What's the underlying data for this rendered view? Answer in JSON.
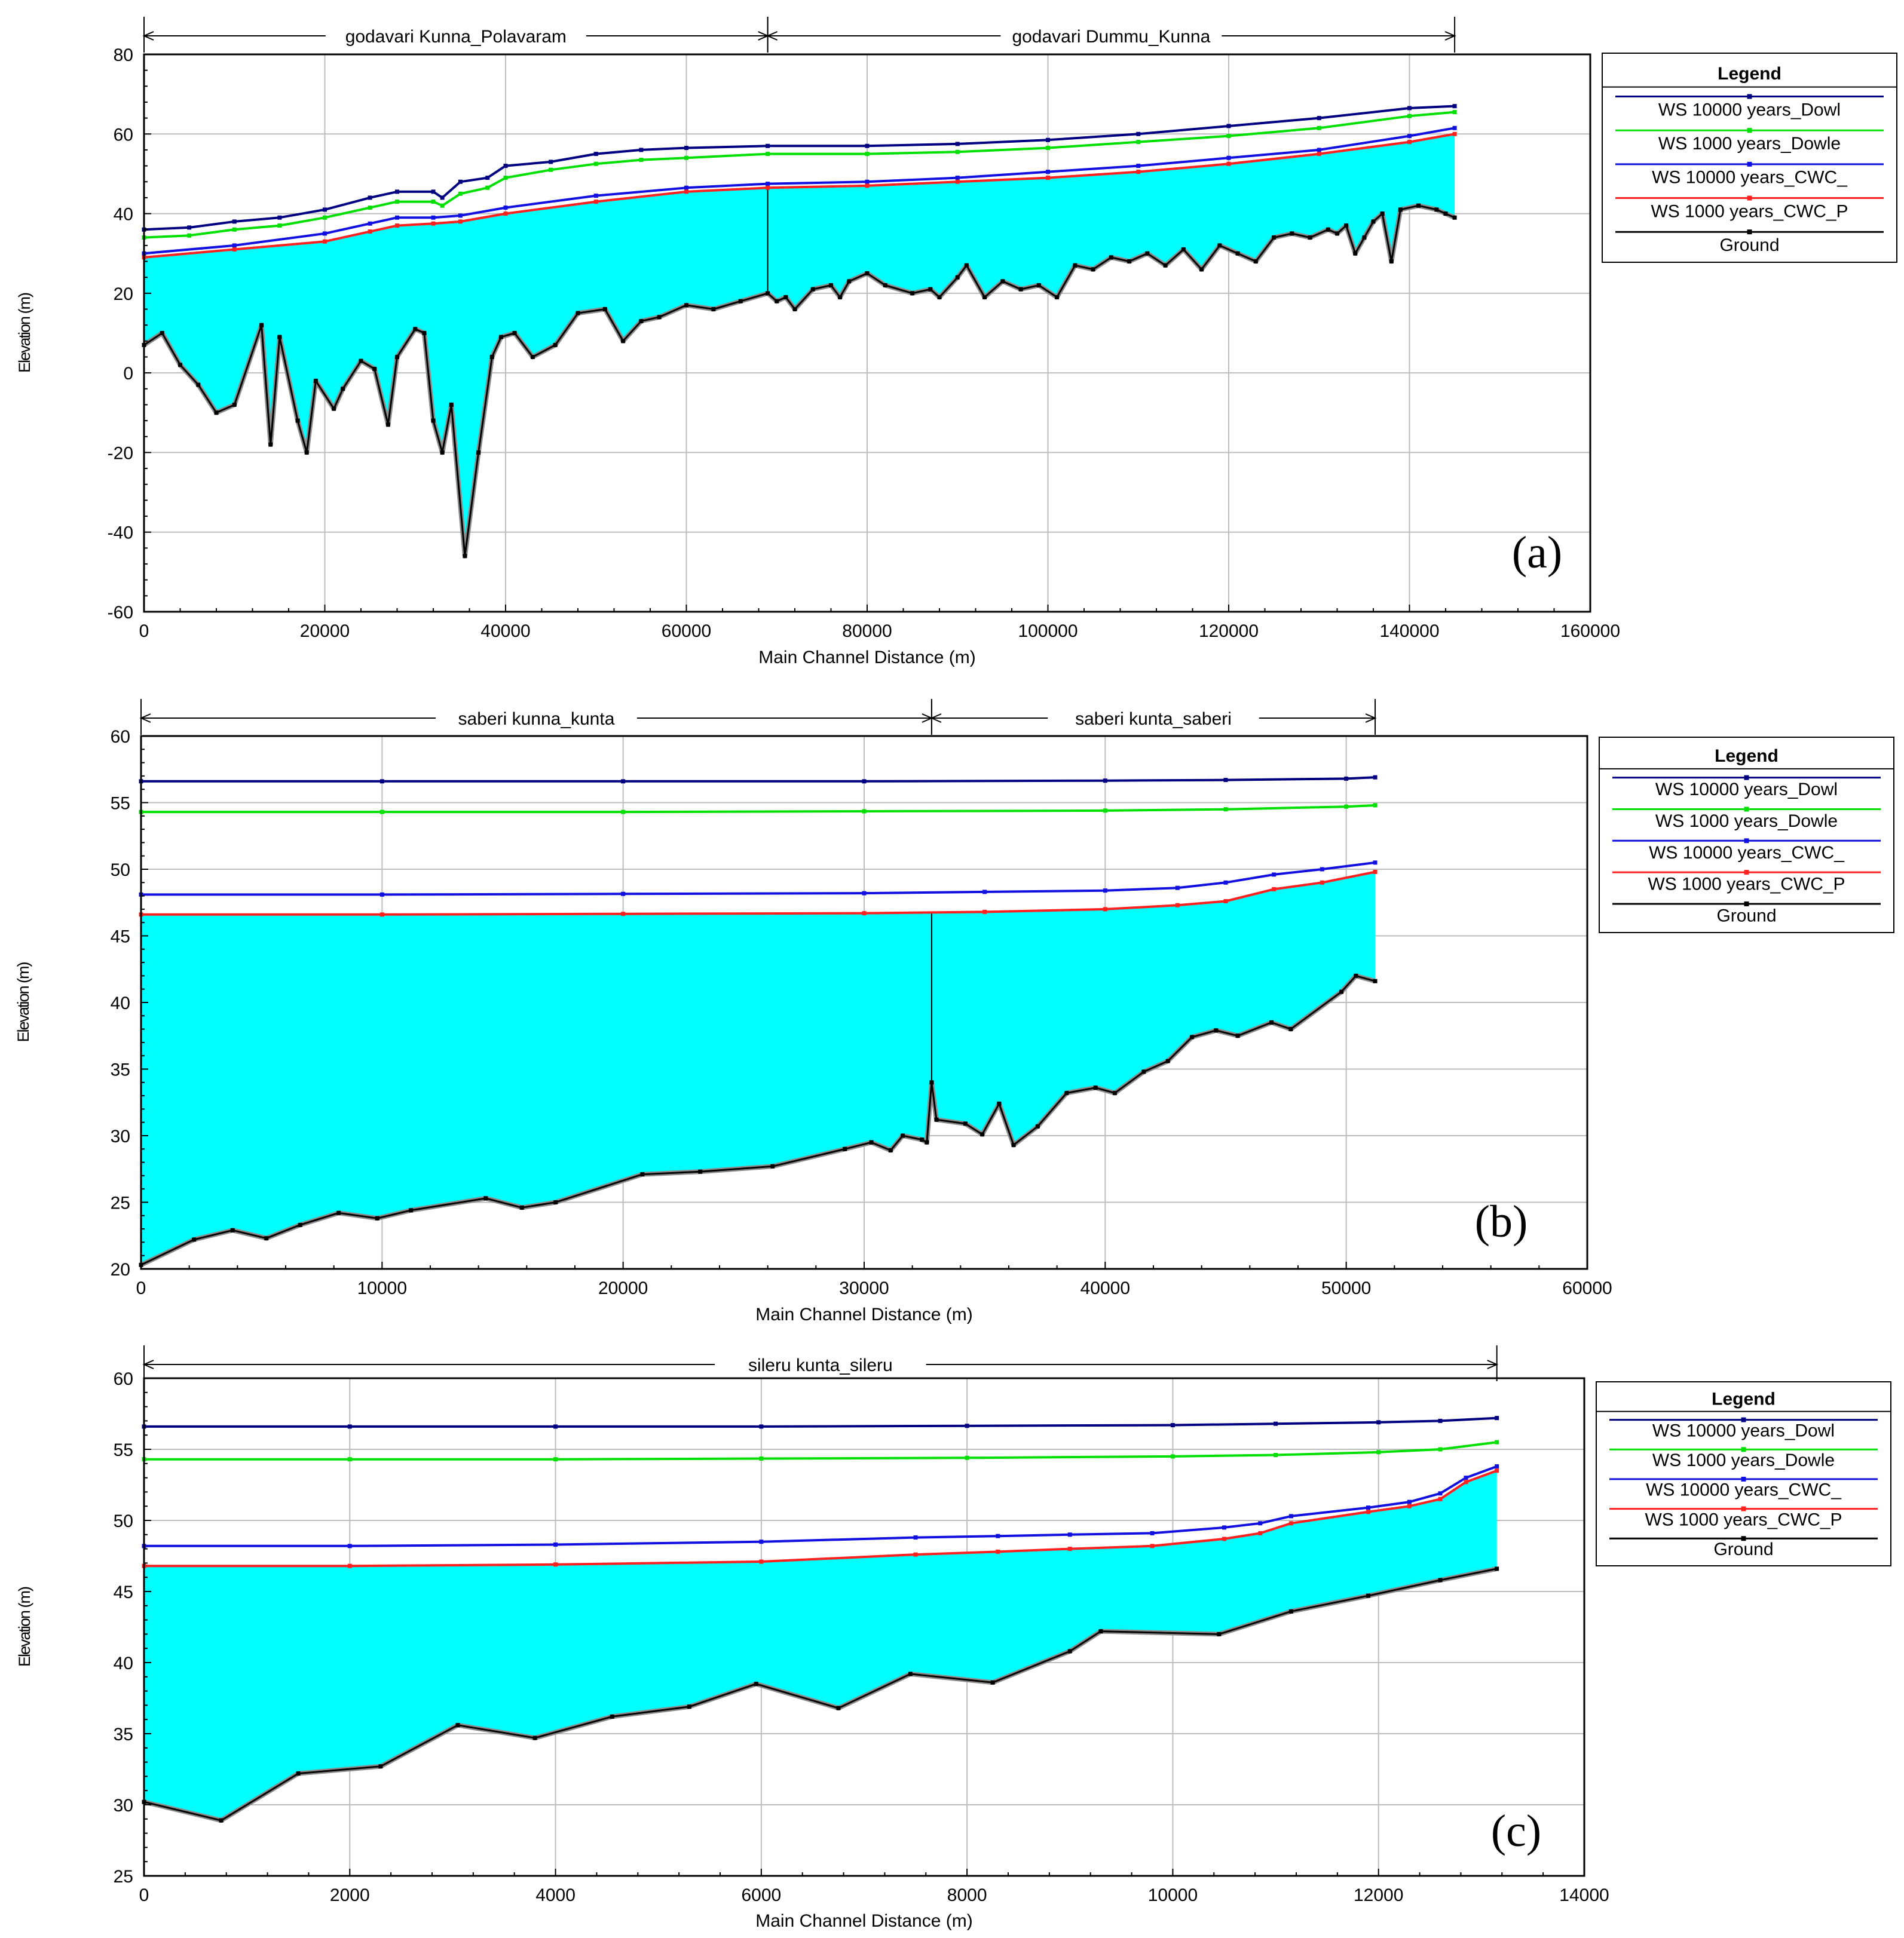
{
  "colors": {
    "ws10000_dowl": "#000080",
    "ws1000_dowle": "#00e000",
    "ws10000_cwc": "#1010e0",
    "ws1000_cwc_p": "#ff2020",
    "ground": "#000000",
    "water_fill": "#00ffff",
    "grid": "#bdbdbd"
  },
  "chart_data": [
    {
      "type": "line",
      "panel_label": "(a)",
      "xlabel": "Main Channel Distance  (m)",
      "ylabel": "Elevation (m)",
      "xlim": [
        0,
        160000
      ],
      "ylim": [
        -60,
        80
      ],
      "xticks": [
        0,
        20000,
        40000,
        60000,
        80000,
        100000,
        120000,
        140000,
        160000
      ],
      "yticks": [
        -60,
        -40,
        -20,
        0,
        20,
        40,
        60,
        80
      ],
      "grid": true,
      "reaches": [
        {
          "name": "godavari Kunna_Polavaram",
          "x0": 0,
          "x1": 69000
        },
        {
          "name": "godavari Dummu_Kunna",
          "x0": 69000,
          "x1": 145000
        }
      ],
      "reach_divider": 69000,
      "legend": {
        "title": "Legend",
        "entries": [
          "WS  10000 years_Dowl",
          "WS  1000 years_Dowle",
          "WS  10000 years_CWC_",
          "WS  1000 years_CWC_P",
          "Ground"
        ]
      },
      "series": [
        {
          "name": "WS  10000 years_Dowl",
          "color_key": "ws10000_dowl",
          "x": [
            0,
            5000,
            10000,
            15000,
            20000,
            25000,
            28000,
            32000,
            33000,
            35000,
            38000,
            40000,
            45000,
            50000,
            55000,
            60000,
            69000,
            80000,
            90000,
            100000,
            110000,
            120000,
            130000,
            140000,
            145000
          ],
          "y": [
            36,
            36.5,
            38,
            39,
            41,
            44,
            45.5,
            45.5,
            44,
            48,
            49,
            52,
            53,
            55,
            56,
            56.5,
            57,
            57,
            57.5,
            58.5,
            60,
            62,
            64,
            66.5,
            67
          ]
        },
        {
          "name": "WS  1000 years_Dowle",
          "color_key": "ws1000_dowle",
          "x": [
            0,
            5000,
            10000,
            15000,
            20000,
            25000,
            28000,
            32000,
            33000,
            35000,
            38000,
            40000,
            45000,
            50000,
            55000,
            60000,
            69000,
            80000,
            90000,
            100000,
            110000,
            120000,
            130000,
            140000,
            145000
          ],
          "y": [
            34,
            34.5,
            36,
            37,
            39,
            41.5,
            43,
            43,
            42,
            45,
            46.5,
            49,
            51,
            52.5,
            53.5,
            54,
            55,
            55,
            55.5,
            56.5,
            58,
            59.5,
            61.5,
            64.5,
            65.5
          ]
        },
        {
          "name": "WS  10000 years_CWC_",
          "color_key": "ws10000_cwc",
          "x": [
            0,
            10000,
            20000,
            25000,
            28000,
            32000,
            35000,
            40000,
            50000,
            60000,
            69000,
            80000,
            90000,
            100000,
            110000,
            120000,
            130000,
            140000,
            145000
          ],
          "y": [
            30,
            32,
            35,
            37.5,
            39,
            39,
            39.5,
            41.5,
            44.5,
            46.5,
            47.5,
            48,
            49,
            50.5,
            52,
            54,
            56,
            59.5,
            61.5
          ]
        },
        {
          "name": "WS  1000 years_CWC_P",
          "color_key": "ws1000_cwc_p",
          "x": [
            0,
            10000,
            20000,
            25000,
            28000,
            32000,
            35000,
            40000,
            50000,
            60000,
            69000,
            80000,
            90000,
            100000,
            110000,
            120000,
            130000,
            140000,
            145000
          ],
          "y": [
            29,
            31,
            33,
            35.5,
            37,
            37.5,
            38,
            40,
            43,
            45.5,
            46.5,
            47,
            48,
            49,
            50.5,
            52.5,
            55,
            58,
            60
          ]
        },
        {
          "name": "Ground",
          "color_key": "ground",
          "x": [
            0,
            2000,
            4000,
            6000,
            8000,
            10000,
            13000,
            14000,
            15000,
            17000,
            18000,
            19000,
            21000,
            22000,
            24000,
            25500,
            27000,
            28000,
            30000,
            31000,
            32000,
            33000,
            34000,
            35500,
            37000,
            38500,
            39500,
            41000,
            43000,
            45500,
            48000,
            51000,
            53000,
            55000,
            57000,
            60000,
            63000,
            66000,
            69000,
            70000,
            71000,
            72000,
            74000,
            76000,
            77000,
            78000,
            80000,
            82000,
            85000,
            87000,
            88000,
            90000,
            91000,
            93000,
            95000,
            97000,
            99000,
            101000,
            103000,
            105000,
            107000,
            109000,
            111000,
            113000,
            115000,
            117000,
            119000,
            121000,
            123000,
            125000,
            127000,
            129000,
            131000,
            132000,
            133000,
            134000,
            135000,
            136000,
            137000,
            138000,
            139000,
            141000,
            143000,
            144000,
            145000
          ],
          "y": [
            7,
            10,
            2,
            -3,
            -10,
            -8,
            12,
            -18,
            9,
            -12,
            -20,
            -2,
            -9,
            -4,
            3,
            1,
            -13,
            4,
            11,
            10,
            -12,
            -20,
            -8,
            -46,
            -20,
            4,
            9,
            10,
            4,
            7,
            15,
            16,
            8,
            13,
            14,
            17,
            16,
            18,
            20,
            18,
            19,
            16,
            21,
            22,
            19,
            23,
            25,
            22,
            20,
            21,
            19,
            24,
            27,
            19,
            23,
            21,
            22,
            19,
            27,
            26,
            29,
            28,
            30,
            27,
            31,
            26,
            32,
            30,
            28,
            34,
            35,
            34,
            36,
            35,
            37,
            30,
            34,
            38,
            40,
            28,
            41,
            42,
            41,
            40,
            39
          ]
        }
      ]
    },
    {
      "type": "line",
      "panel_label": "(b)",
      "xlabel": "Main Channel Distance  (m)",
      "ylabel": "Elevation (m)",
      "xlim": [
        0,
        60000
      ],
      "ylim": [
        20,
        60
      ],
      "xticks": [
        0,
        10000,
        20000,
        30000,
        40000,
        50000,
        60000
      ],
      "yticks": [
        20,
        25,
        30,
        35,
        40,
        45,
        50,
        55,
        60
      ],
      "grid": true,
      "reaches": [
        {
          "name": "saberi kunna_kunta",
          "x0": 0,
          "x1": 32800
        },
        {
          "name": "saberi kunta_saberi",
          "x0": 32800,
          "x1": 51200
        }
      ],
      "reach_divider": 32800,
      "legend": {
        "title": "Legend",
        "entries": [
          "WS  10000 years_Dowl",
          "WS  1000 years_Dowle",
          "WS  10000 years_CWC_",
          "WS  1000 years_CWC_P",
          "Ground"
        ]
      },
      "series": [
        {
          "name": "WS  10000 years_Dowl",
          "color_key": "ws10000_dowl",
          "x": [
            0,
            10000,
            20000,
            30000,
            40000,
            45000,
            50000,
            51200
          ],
          "y": [
            56.6,
            56.6,
            56.6,
            56.6,
            56.65,
            56.7,
            56.8,
            56.9
          ]
        },
        {
          "name": "WS  1000 years_Dowle",
          "color_key": "ws1000_dowle",
          "x": [
            0,
            10000,
            20000,
            30000,
            40000,
            45000,
            50000,
            51200
          ],
          "y": [
            54.3,
            54.3,
            54.3,
            54.35,
            54.4,
            54.5,
            54.7,
            54.8
          ]
        },
        {
          "name": "WS  10000 years_CWC_",
          "color_key": "ws10000_cwc",
          "x": [
            0,
            10000,
            20000,
            30000,
            35000,
            40000,
            43000,
            45000,
            47000,
            49000,
            51200
          ],
          "y": [
            48.1,
            48.1,
            48.15,
            48.2,
            48.3,
            48.4,
            48.6,
            49.0,
            49.6,
            50.0,
            50.5
          ]
        },
        {
          "name": "WS  1000 years_CWC_P",
          "color_key": "ws1000_cwc_p",
          "x": [
            0,
            10000,
            20000,
            30000,
            35000,
            40000,
            43000,
            45000,
            47000,
            49000,
            51200
          ],
          "y": [
            46.6,
            46.6,
            46.65,
            46.7,
            46.8,
            47.0,
            47.3,
            47.6,
            48.5,
            49.0,
            49.8
          ]
        },
        {
          "name": "Ground",
          "color_key": "ground",
          "x": [
            0,
            2200,
            3800,
            5200,
            6600,
            8200,
            9800,
            11200,
            14300,
            15800,
            17200,
            20800,
            23200,
            26200,
            29200,
            30300,
            31100,
            31600,
            32400,
            32600,
            32800,
            33000,
            34200,
            34900,
            35600,
            36200,
            37200,
            38400,
            39600,
            40400,
            41600,
            42600,
            43600,
            44600,
            45500,
            46900,
            47700,
            49800,
            50400,
            51200
          ],
          "y": [
            20.3,
            22.2,
            22.9,
            22.3,
            23.3,
            24.2,
            23.8,
            24.4,
            25.3,
            24.6,
            25.0,
            27.1,
            27.3,
            27.7,
            29.0,
            29.5,
            28.9,
            30.0,
            29.7,
            29.5,
            34.0,
            31.2,
            30.9,
            30.1,
            32.4,
            29.3,
            30.7,
            33.2,
            33.6,
            33.2,
            34.8,
            35.6,
            37.4,
            37.9,
            37.5,
            38.5,
            38.0,
            40.8,
            42.0,
            41.6
          ]
        }
      ]
    },
    {
      "type": "line",
      "panel_label": "(c)",
      "xlabel": "Main Channel Distance  (m)",
      "ylabel": "Elevation (m)",
      "xlim": [
        0,
        14000
      ],
      "ylim": [
        25,
        60
      ],
      "xticks": [
        0,
        2000,
        4000,
        6000,
        8000,
        10000,
        12000,
        14000
      ],
      "yticks": [
        25,
        30,
        35,
        40,
        45,
        50,
        55,
        60
      ],
      "grid": true,
      "reaches": [
        {
          "name": "sileru kunta_sileru",
          "x0": 0,
          "x1": 13150
        }
      ],
      "reach_divider": null,
      "legend": {
        "title": "Legend",
        "entries": [
          "WS  10000 years_Dowl",
          "WS  1000 years_Dowle",
          "WS  10000 years_CWC_",
          "WS  1000 years_CWC_P",
          "Ground"
        ]
      },
      "series": [
        {
          "name": "WS  10000 years_Dowl",
          "color_key": "ws10000_dowl",
          "x": [
            0,
            2000,
            4000,
            6000,
            8000,
            10000,
            11000,
            12000,
            12600,
            13150
          ],
          "y": [
            56.6,
            56.6,
            56.6,
            56.6,
            56.65,
            56.7,
            56.8,
            56.9,
            57.0,
            57.2
          ]
        },
        {
          "name": "WS  1000 years_Dowle",
          "color_key": "ws1000_dowle",
          "x": [
            0,
            2000,
            4000,
            6000,
            8000,
            10000,
            11000,
            12000,
            12600,
            13150
          ],
          "y": [
            54.3,
            54.3,
            54.3,
            54.35,
            54.4,
            54.5,
            54.6,
            54.8,
            55.0,
            55.5
          ]
        },
        {
          "name": "WS  10000 years_CWC_",
          "color_key": "ws10000_cwc",
          "x": [
            0,
            2000,
            4000,
            6000,
            7500,
            8300,
            9000,
            9800,
            10500,
            10850,
            11150,
            11900,
            12300,
            12600,
            12850,
            13150
          ],
          "y": [
            48.2,
            48.2,
            48.3,
            48.5,
            48.8,
            48.9,
            49.0,
            49.1,
            49.5,
            49.8,
            50.3,
            50.9,
            51.3,
            51.9,
            53.0,
            53.8
          ]
        },
        {
          "name": "WS  1000 years_CWC_P",
          "color_key": "ws1000_cwc_p",
          "x": [
            0,
            2000,
            4000,
            6000,
            7500,
            8300,
            9000,
            9800,
            10500,
            10850,
            11150,
            11900,
            12300,
            12600,
            12850,
            13150
          ],
          "y": [
            46.8,
            46.8,
            46.9,
            47.1,
            47.6,
            47.8,
            48.0,
            48.2,
            48.7,
            49.1,
            49.8,
            50.6,
            51.0,
            51.5,
            52.7,
            53.5
          ]
        },
        {
          "name": "Ground",
          "color_key": "ground",
          "x": [
            0,
            750,
            1500,
            2300,
            3050,
            3800,
            4550,
            5300,
            5950,
            6750,
            7450,
            8250,
            9000,
            9300,
            10450,
            11150,
            11900,
            12600,
            13150
          ],
          "y": [
            30.2,
            28.9,
            32.2,
            32.7,
            35.6,
            34.7,
            36.2,
            36.9,
            38.5,
            36.8,
            39.2,
            38.6,
            40.8,
            42.2,
            42.0,
            43.6,
            44.7,
            45.8,
            46.6
          ]
        }
      ]
    }
  ]
}
